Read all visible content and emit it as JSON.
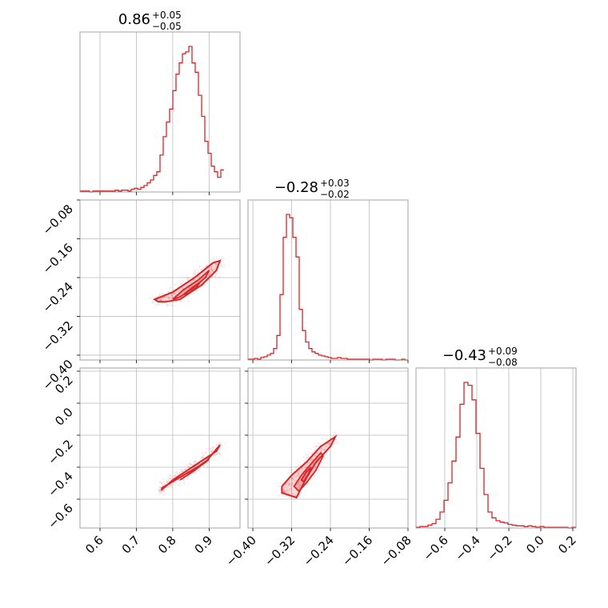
{
  "chart_data": {
    "type": "corner",
    "color": "#d62728",
    "parameters": [
      {
        "index": 0,
        "median": "0.86",
        "plus": "+0.05",
        "minus": "−0.05",
        "range": [
          0.545,
          0.985
        ],
        "ticks": [
          0.6,
          0.7,
          0.8,
          0.9
        ],
        "tick_labels": [
          "0.6",
          "0.7",
          "0.8",
          "0.9"
        ],
        "hist": {
          "edges_start": 0.545,
          "bin_width": 0.0088,
          "counts": [
            1,
            1,
            1,
            0,
            1,
            1,
            1,
            1,
            1,
            1,
            1,
            2,
            1,
            2,
            2,
            1,
            3,
            4,
            3,
            5,
            7,
            10,
            13,
            18,
            22,
            40,
            60,
            76,
            90,
            110,
            128,
            140,
            150,
            152,
            158,
            140,
            130,
            105,
            82,
            55,
            42,
            28,
            22,
            16,
            24
          ]
        }
      },
      {
        "index": 1,
        "median": "−0.28",
        "plus": "+0.03",
        "minus": "−0.02",
        "range": [
          -0.41,
          -0.08
        ],
        "ticks": [
          -0.4,
          -0.32,
          -0.24,
          -0.16,
          -0.08
        ],
        "tick_labels": [
          "−0.40",
          "−0.32",
          "−0.24",
          "−0.16",
          "−0.08"
        ],
        "hist": {
          "edges_start": -0.41,
          "bin_width": 0.0066,
          "counts": [
            1,
            1,
            2,
            1,
            3,
            4,
            6,
            8,
            14,
            30,
            80,
            150,
            178,
            174,
            150,
            126,
            62,
            36,
            22,
            14,
            10,
            8,
            6,
            5,
            4,
            3,
            2,
            2,
            3,
            2,
            2,
            1,
            1,
            1,
            1,
            1,
            1,
            1,
            0,
            1,
            1,
            1,
            0,
            1,
            1,
            1,
            0,
            0,
            1,
            0
          ]
        }
      },
      {
        "index": 2,
        "median": "−0.43",
        "plus": "+0.09",
        "minus": "−0.08",
        "range": [
          -0.78,
          0.22
        ],
        "ticks": [
          -0.6,
          -0.4,
          -0.2,
          0.0,
          0.2
        ],
        "tick_labels": [
          "−0.6",
          "−0.4",
          "−0.2",
          "0.0",
          "0.2"
        ],
        "hist": {
          "edges_start": -0.78,
          "bin_width": 0.025,
          "counts": [
            1,
            2,
            2,
            4,
            6,
            12,
            22,
            38,
            62,
            92,
            125,
            170,
            200,
            196,
            176,
            130,
            82,
            46,
            22,
            14,
            10,
            8,
            7,
            5,
            4,
            3,
            3,
            2,
            3,
            2,
            1,
            2,
            1,
            1,
            1,
            1,
            1,
            1,
            0,
            1
          ]
        }
      }
    ],
    "pairs": [
      {
        "x_param": 0,
        "y_param": 1,
        "contours": [
          [
            [
              0.75,
              -0.285
            ],
            [
              0.8,
              -0.27
            ],
            [
              0.86,
              -0.24
            ],
            [
              0.91,
              -0.21
            ],
            [
              0.93,
              -0.205
            ],
            [
              0.92,
              -0.225
            ],
            [
              0.88,
              -0.255
            ],
            [
              0.82,
              -0.285
            ],
            [
              0.78,
              -0.29
            ],
            [
              0.76,
              -0.29
            ]
          ],
          [
            [
              0.8,
              -0.285
            ],
            [
              0.83,
              -0.265
            ],
            [
              0.87,
              -0.245
            ],
            [
              0.9,
              -0.225
            ],
            [
              0.89,
              -0.24
            ],
            [
              0.85,
              -0.265
            ],
            [
              0.82,
              -0.28
            ]
          ],
          [
            [
              0.83,
              -0.275
            ],
            [
              0.855,
              -0.26
            ],
            [
              0.875,
              -0.25
            ],
            [
              0.865,
              -0.26
            ],
            [
              0.845,
              -0.272
            ]
          ]
        ],
        "scatter_center": [
          0.84,
          -0.26
        ]
      },
      {
        "x_param": 0,
        "y_param": 2,
        "contours": [
          [
            [
              0.77,
              -0.53
            ],
            [
              0.83,
              -0.45
            ],
            [
              0.89,
              -0.37
            ],
            [
              0.93,
              -0.26
            ],
            [
              0.92,
              -0.3
            ],
            [
              0.86,
              -0.39
            ],
            [
              0.8,
              -0.48
            ],
            [
              0.77,
              -0.54
            ]
          ],
          [
            [
              0.82,
              -0.48
            ],
            [
              0.86,
              -0.42
            ],
            [
              0.9,
              -0.35
            ],
            [
              0.88,
              -0.38
            ],
            [
              0.84,
              -0.45
            ]
          ]
        ],
        "scatter_center": [
          0.85,
          -0.42
        ]
      },
      {
        "x_param": 1,
        "y_param": 2,
        "contours": [
          [
            [
              -0.34,
              -0.52
            ],
            [
              -0.32,
              -0.45
            ],
            [
              -0.29,
              -0.37
            ],
            [
              -0.26,
              -0.27
            ],
            [
              -0.23,
              -0.21
            ],
            [
              -0.24,
              -0.27
            ],
            [
              -0.27,
              -0.37
            ],
            [
              -0.29,
              -0.47
            ],
            [
              -0.31,
              -0.59
            ],
            [
              -0.34,
              -0.56
            ]
          ],
          [
            [
              -0.315,
              -0.52
            ],
            [
              -0.3,
              -0.45
            ],
            [
              -0.28,
              -0.38
            ],
            [
              -0.26,
              -0.31
            ],
            [
              -0.255,
              -0.33
            ],
            [
              -0.27,
              -0.42
            ],
            [
              -0.29,
              -0.5
            ],
            [
              -0.305,
              -0.55
            ]
          ],
          [
            [
              -0.3,
              -0.48
            ],
            [
              -0.29,
              -0.43
            ],
            [
              -0.28,
              -0.4
            ],
            [
              -0.285,
              -0.44
            ],
            [
              -0.295,
              -0.49
            ]
          ]
        ],
        "scatter_center": [
          -0.28,
          -0.43
        ]
      }
    ]
  }
}
